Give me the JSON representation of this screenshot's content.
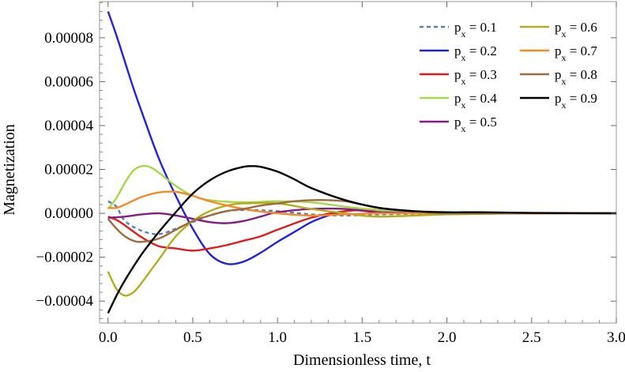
{
  "chart_data": {
    "type": "line",
    "xlabel": "Dimensionless time, t",
    "ylabel": "Magnetization",
    "xlim": [
      -0.05,
      3.0
    ],
    "ylim": [
      -5e-05,
      9.65e-05
    ],
    "xticks": [
      0.0,
      0.5,
      1.0,
      1.5,
      2.0,
      2.5,
      3.0
    ],
    "xtick_labels": [
      "0.0",
      "0.5",
      "1.0",
      "1.5",
      "2.0",
      "2.5",
      "3.0"
    ],
    "yticks": [
      -4e-05,
      -2e-05,
      0,
      2e-05,
      4e-05,
      6e-05,
      8e-05
    ],
    "ytick_labels": [
      "−0.00004",
      "−0.00002",
      "0.00000",
      "0.00002",
      "0.00004",
      "0.00006",
      "0.00008"
    ],
    "grid": false,
    "legend_position": "top-right",
    "legend_prefix": "p",
    "legend_subscript": "x",
    "series": [
      {
        "name": "= 0.1",
        "color": "#5b7fb5",
        "dash": "dashed",
        "x": [
          0,
          0.05,
          0.1,
          0.2,
          0.3,
          0.4,
          0.5,
          0.6,
          0.7,
          0.8,
          1.0,
          1.2,
          1.4,
          1.6,
          2.0,
          2.5,
          3.0
        ],
        "y": [
          5.5e-06,
          3e-06,
          -3.5e-06,
          -8e-06,
          -9.5e-06,
          -7e-06,
          -4e-06,
          -1e-06,
          1e-06,
          1.5e-06,
          1e-06,
          -5e-07,
          -1e-06,
          -5e-07,
          0,
          0,
          0
        ]
      },
      {
        "name": "= 0.2",
        "color": "#1f23e0",
        "dash": "solid",
        "x": [
          0,
          0.05,
          0.1,
          0.15,
          0.2,
          0.3,
          0.4,
          0.5,
          0.6,
          0.7,
          0.8,
          0.9,
          1.0,
          1.1,
          1.2,
          1.3,
          1.4,
          1.5,
          1.6,
          1.8,
          2.0,
          2.5,
          3.0
        ],
        "y": [
          9.2e-05,
          8.1e-05,
          6.9e-05,
          5.7e-05,
          4.6e-05,
          2.5e-05,
          8e-06,
          -7e-06,
          -1.85e-05,
          -2.3e-05,
          -2.2e-05,
          -1.8e-05,
          -1.3e-05,
          -8.5e-06,
          -4e-06,
          -1e-06,
          1e-06,
          2e-06,
          1.5e-06,
          5e-07,
          0,
          0,
          0
        ]
      },
      {
        "name": "= 0.3",
        "color": "#e01b1b",
        "dash": "solid",
        "x": [
          0,
          0.05,
          0.1,
          0.2,
          0.3,
          0.4,
          0.5,
          0.6,
          0.7,
          0.8,
          0.9,
          1.0,
          1.2,
          1.4,
          1.6,
          1.8,
          2.0,
          2.5,
          3.0
        ],
        "y": [
          -1.5e-06,
          -3e-06,
          -5.5e-06,
          -1.1e-05,
          -1.5e-05,
          -1.6e-05,
          -1.7e-05,
          -1.6e-05,
          -1.45e-05,
          -1.25e-05,
          -1.05e-05,
          -7.5e-06,
          -2e-06,
          1e-06,
          1.5e-06,
          1e-06,
          0,
          0,
          0
        ]
      },
      {
        "name": "= 0.4",
        "color": "#a4d84a",
        "dash": "solid",
        "x": [
          0,
          0.05,
          0.1,
          0.15,
          0.2,
          0.25,
          0.3,
          0.4,
          0.5,
          0.6,
          0.8,
          1.0,
          1.2,
          1.4,
          1.6,
          2.0,
          2.5,
          3.0
        ],
        "y": [
          2e-06,
          7e-06,
          1.4e-05,
          1.95e-05,
          2.15e-05,
          2.1e-05,
          1.85e-05,
          1.25e-05,
          8e-06,
          6e-06,
          5e-06,
          5.5e-06,
          5e-06,
          3e-06,
          1.5e-06,
          0,
          0,
          0
        ]
      },
      {
        "name": "= 0.5",
        "color": "#861b87",
        "dash": "solid",
        "x": [
          0,
          0.1,
          0.2,
          0.3,
          0.4,
          0.5,
          0.6,
          0.7,
          0.8,
          0.9,
          1.0,
          1.2,
          1.4,
          1.6,
          2.0,
          2.5,
          3.0
        ],
        "y": [
          -2e-06,
          -1.5e-06,
          -5e-07,
          0,
          -1e-06,
          -2.5e-06,
          -4e-06,
          -4.5e-06,
          -3.5e-06,
          -1.5e-06,
          5e-07,
          2e-06,
          2e-06,
          5e-07,
          0,
          0,
          0
        ]
      },
      {
        "name": "= 0.6",
        "color": "#b3ad1c",
        "dash": "solid",
        "x": [
          0,
          0.05,
          0.1,
          0.15,
          0.2,
          0.3,
          0.4,
          0.5,
          0.6,
          0.7,
          0.8,
          1.0,
          1.2,
          1.4,
          1.6,
          2.0,
          2.5,
          3.0
        ],
        "y": [
          -2.65e-05,
          -3.45e-05,
          -3.75e-05,
          -3.6e-05,
          -3.15e-05,
          -2.1e-05,
          -1.05e-05,
          -3.5e-06,
          1e-06,
          3.5e-06,
          4.5e-06,
          4.5e-06,
          2e-06,
          0,
          -1.5e-06,
          -5e-07,
          0,
          0
        ]
      },
      {
        "name": "= 0.7",
        "color": "#f58a27",
        "dash": "solid",
        "x": [
          0,
          0.05,
          0.1,
          0.2,
          0.3,
          0.4,
          0.5,
          0.6,
          0.8,
          1.0,
          1.2,
          1.4,
          1.6,
          2.0,
          2.5,
          3.0
        ],
        "y": [
          2.5e-06,
          2.5e-06,
          4e-06,
          7.5e-06,
          9.5e-06,
          9.8e-06,
          8e-06,
          5.5e-06,
          2e-06,
          0,
          -1e-06,
          -5e-07,
          0,
          0,
          0,
          0
        ]
      },
      {
        "name": "= 0.8",
        "color": "#9e6b3e",
        "dash": "solid",
        "x": [
          0,
          0.05,
          0.1,
          0.15,
          0.2,
          0.3,
          0.4,
          0.5,
          0.6,
          0.7,
          0.8,
          0.9,
          1.0,
          1.1,
          1.2,
          1.3,
          1.4,
          1.5,
          1.6,
          1.8,
          2.0,
          2.5,
          3.0
        ],
        "y": [
          -2.5e-06,
          -7e-06,
          -1.05e-05,
          -1.25e-05,
          -1.3e-05,
          -1.15e-05,
          -7.5e-06,
          -3.5e-06,
          -1e-06,
          1e-06,
          2e-06,
          3.5e-06,
          4.5e-06,
          5.5e-06,
          6e-06,
          6e-06,
          5.5e-06,
          4e-06,
          2.5e-06,
          1e-06,
          0,
          0,
          0
        ]
      },
      {
        "name": "= 0.9",
        "color": "#000000",
        "dash": "solid",
        "x": [
          0,
          0.05,
          0.1,
          0.2,
          0.3,
          0.4,
          0.5,
          0.6,
          0.7,
          0.8,
          0.85,
          0.9,
          1.0,
          1.1,
          1.2,
          1.4,
          1.6,
          1.8,
          2.0,
          2.2,
          2.5,
          3.0
        ],
        "y": [
          -4.55e-05,
          -3.75e-05,
          -3.05e-05,
          -1.85e-05,
          -8.5e-06,
          5e-07,
          9e-06,
          1.5e-05,
          1.9e-05,
          2.12e-05,
          2.15e-05,
          2.12e-05,
          1.9e-05,
          1.55e-05,
          1.15e-05,
          6e-06,
          2.5e-06,
          1e-06,
          5e-07,
          5e-07,
          2e-07,
          0
        ]
      }
    ]
  }
}
